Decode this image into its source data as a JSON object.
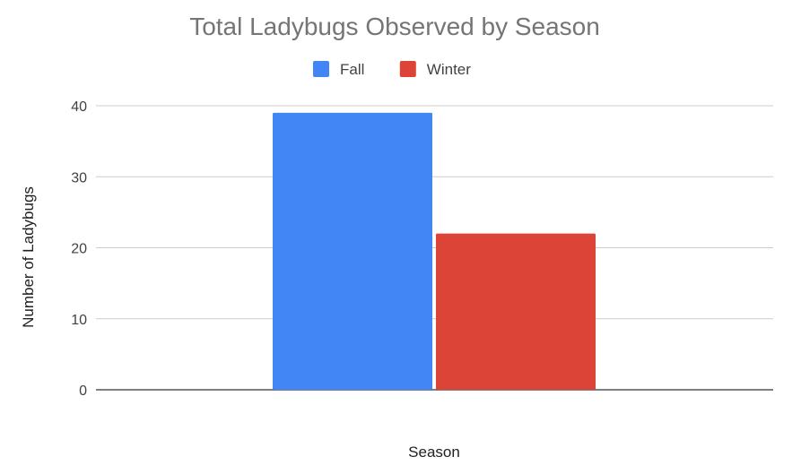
{
  "chart_data": {
    "type": "bar",
    "title": "Total Ladybugs Observed by Season",
    "xlabel": "Season",
    "ylabel": "Number of Ladybugs",
    "categories": [
      ""
    ],
    "series": [
      {
        "name": "Fall",
        "values": [
          39
        ],
        "color": "#4285f4"
      },
      {
        "name": "Winter",
        "values": [
          22
        ],
        "color": "#db4437"
      }
    ],
    "ylim": [
      0,
      40
    ],
    "yticks": [
      0,
      10,
      20,
      30,
      40
    ],
    "grid": true,
    "legend_position": "top"
  }
}
